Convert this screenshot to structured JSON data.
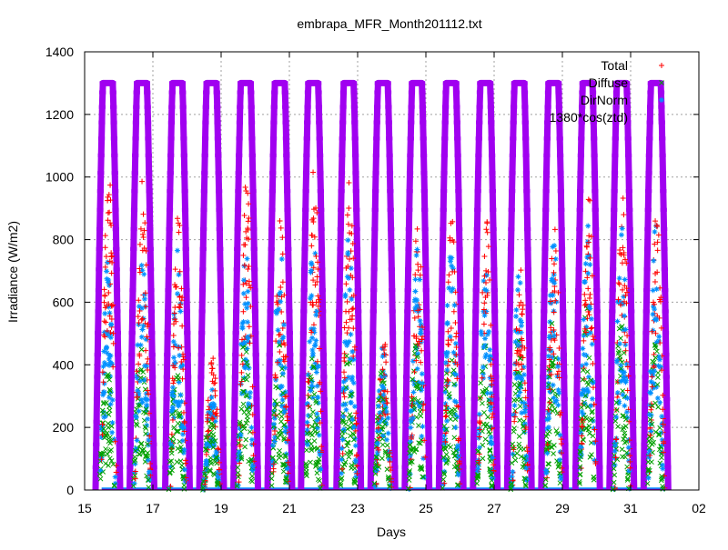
{
  "chart_data": {
    "type": "scatter",
    "title": "embrapa_MFR_Month201112.txt",
    "xlabel": "Days",
    "ylabel": "Irradiance (W/m2)",
    "x_ticks": [
      "15",
      "17",
      "19",
      "21",
      "23",
      "25",
      "27",
      "29",
      "31",
      "02"
    ],
    "x_tick_values": [
      15,
      17,
      19,
      21,
      23,
      25,
      27,
      29,
      31,
      33
    ],
    "xlim": [
      15,
      33
    ],
    "ylim": [
      0,
      1400
    ],
    "y_ticks": [
      0,
      200,
      400,
      600,
      800,
      1000,
      1200,
      1400
    ],
    "grid": true,
    "legend_position": "top-right",
    "day_centers": [
      15.68,
      16.68,
      17.72,
      18.72,
      19.72,
      20.72,
      21.7,
      22.74,
      23.74,
      24.74,
      25.74,
      26.74,
      27.74,
      28.74,
      29.74,
      30.74,
      31.74
    ],
    "daily_total_peak": [
      1050,
      1040,
      900,
      450,
      1000,
      890,
      1040,
      1020,
      490,
      880,
      900,
      880,
      720,
      880,
      970,
      1000,
      920
    ],
    "daily_direct_peak": [
      750,
      760,
      770,
      330,
      790,
      820,
      840,
      830,
      460,
      780,
      830,
      820,
      720,
      820,
      850,
      840,
      860
    ],
    "daily_diffuse_peak": [
      400,
      500,
      420,
      300,
      520,
      500,
      450,
      460,
      420,
      480,
      520,
      500,
      480,
      550,
      600,
      550,
      480
    ],
    "series": [
      {
        "name": "Total",
        "marker": "+",
        "color": "#ff0000"
      },
      {
        "name": "Diffuse",
        "marker": "x",
        "color": "#00a000"
      },
      {
        "name": "DirNorm",
        "marker": "*",
        "color": "#0090ff"
      },
      {
        "name": "1380*cos(ztd)",
        "marker": "square",
        "color": "#a000f0"
      }
    ],
    "model_peak": 1300
  }
}
